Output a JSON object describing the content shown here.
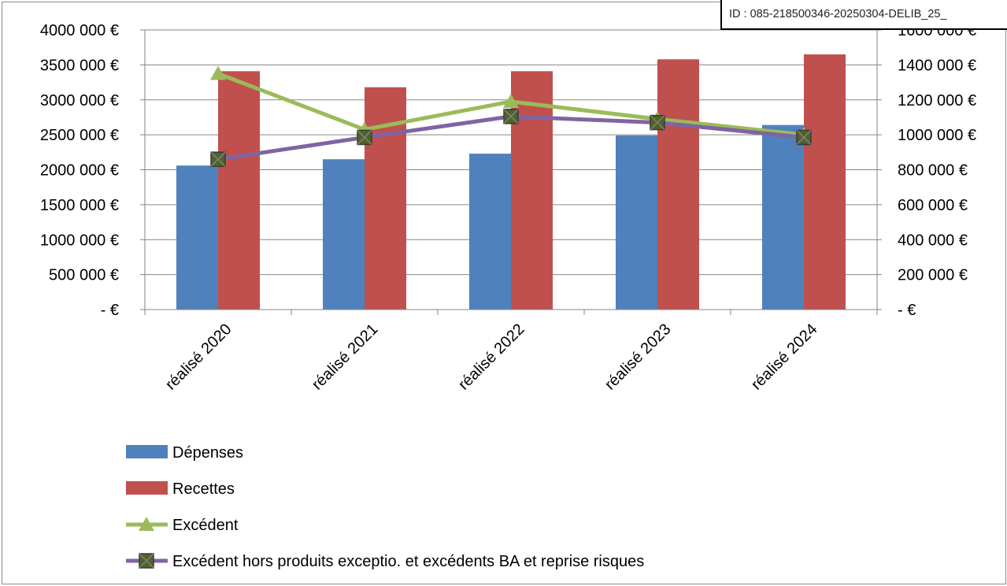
{
  "chart_data": {
    "type": "bar",
    "categories": [
      "réalisé 2020",
      "réalisé 2021",
      "réalisé 2022",
      "réalisé 2023",
      "réalisé 2024"
    ],
    "series": [
      {
        "name": "Dépenses",
        "kind": "bar",
        "axis": "left",
        "color": "#4f81bd",
        "values": [
          2060000,
          2150000,
          2230000,
          2490000,
          2640000
        ]
      },
      {
        "name": "Recettes",
        "kind": "bar",
        "axis": "left",
        "color": "#c0504d",
        "values": [
          3410000,
          3180000,
          3410000,
          3580000,
          3650000
        ]
      },
      {
        "name": "Excédent",
        "kind": "line",
        "marker": "triangle",
        "axis": "right",
        "color": "#9bbb59",
        "values": [
          1350000,
          1030000,
          1190000,
          1090000,
          1000000
        ]
      },
      {
        "name": "Excédent hors produits exceptio. et excédents BA et reprise risques",
        "kind": "line",
        "marker": "square-x",
        "axis": "right",
        "color": "#8064a2",
        "values": [
          860000,
          985000,
          1105000,
          1070000,
          985000
        ]
      }
    ],
    "y_left": {
      "min": 0,
      "max": 4000000,
      "step": 500000,
      "tick_labels": [
        "-  €",
        "500 000 €",
        "1000 000 €",
        "1500 000 €",
        "2000 000 €",
        "2500 000 €",
        "3000 000 €",
        "3500 000 €",
        "4000 000 €"
      ]
    },
    "y_right": {
      "min": 0,
      "max": 1600000,
      "step": 200000,
      "tick_labels": [
        "-  €",
        "200 000 €",
        "400 000 €",
        "600 000 €",
        "800 000 €",
        "1000 000 €",
        "1200 000 €",
        "1400 000 €",
        "1600 000 €"
      ]
    },
    "grid": true,
    "legend_position": "bottom-left"
  },
  "stamp": {
    "text": "ID : 085-218500346-20250304-DELIB_25_"
  }
}
